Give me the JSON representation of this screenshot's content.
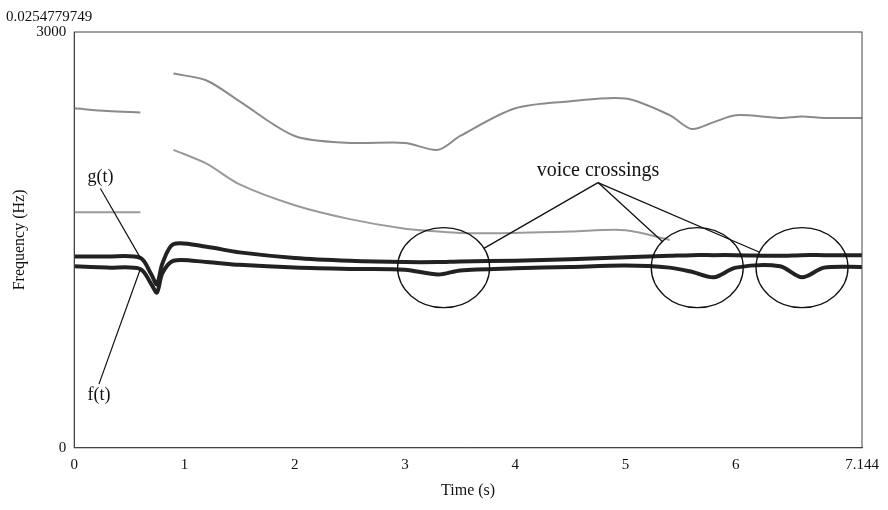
{
  "chart_data": {
    "type": "line",
    "title": "0.0254779749",
    "x_label": "Time (s)",
    "y_label": "Frequency (Hz)",
    "x": [
      0,
      0.3,
      0.6,
      0.7,
      0.75,
      0.8,
      0.9,
      1.2,
      1.5,
      2,
      2.5,
      3,
      3.3,
      3.5,
      4,
      4.5,
      5,
      5.4,
      5.6,
      5.8,
      6,
      6.4,
      6.6,
      6.8,
      7.144
    ],
    "xlim": [
      0,
      7.144
    ],
    "xticks": [
      0,
      1,
      2,
      3,
      4,
      5,
      6,
      7.144
    ],
    "ylim": [
      0,
      3000
    ],
    "yticks": [
      0,
      3000
    ],
    "grid": false,
    "series": [
      {
        "name": "g(t)",
        "color": "#222222",
        "values": [
          1380,
          1380,
          1370,
          1250,
          1180,
          1330,
          1470,
          1450,
          1410,
          1370,
          1350,
          1340,
          1340,
          1345,
          1350,
          1360,
          1375,
          1385,
          1390,
          1390,
          1390,
          1385,
          1390,
          1390,
          1390
        ],
        "label_at": {
          "x": 0.12,
          "y": 1950,
          "point_x": 0.6
        }
      },
      {
        "name": "f(t)",
        "color": "#222222",
        "values": [
          1310,
          1300,
          1290,
          1180,
          1120,
          1260,
          1350,
          1340,
          1320,
          1300,
          1290,
          1285,
          1250,
          1280,
          1295,
          1305,
          1315,
          1300,
          1270,
          1230,
          1300,
          1310,
          1230,
          1300,
          1305
        ],
        "label_at": {
          "x": 0.12,
          "y": 380,
          "point_x": 0.6
        }
      },
      {
        "color": "#8a8a8a",
        "values": [
          2450,
          2430,
          2420,
          null,
          null,
          null,
          2700,
          2650,
          2500,
          2250,
          2200,
          2200,
          2150,
          2250,
          2450,
          2500,
          2520,
          2400,
          2300,
          2350,
          2400,
          2380,
          2390,
          2380,
          2380
        ]
      },
      {
        "color": "#9a9a9a",
        "values": [
          1700,
          1700,
          1700,
          null,
          null,
          null,
          2150,
          2050,
          1900,
          1750,
          1650,
          1580,
          1560,
          1550,
          1550,
          1560,
          1570,
          1500,
          null,
          null,
          null,
          null,
          null,
          null,
          null
        ]
      }
    ],
    "annotations": [
      {
        "text": "voice crossings",
        "x": 4.75,
        "y": 2000,
        "circles": [
          {
            "x": 3.35,
            "y": 1300
          },
          {
            "x": 5.65,
            "y": 1300
          },
          {
            "x": 6.6,
            "y": 1300
          }
        ]
      }
    ]
  }
}
